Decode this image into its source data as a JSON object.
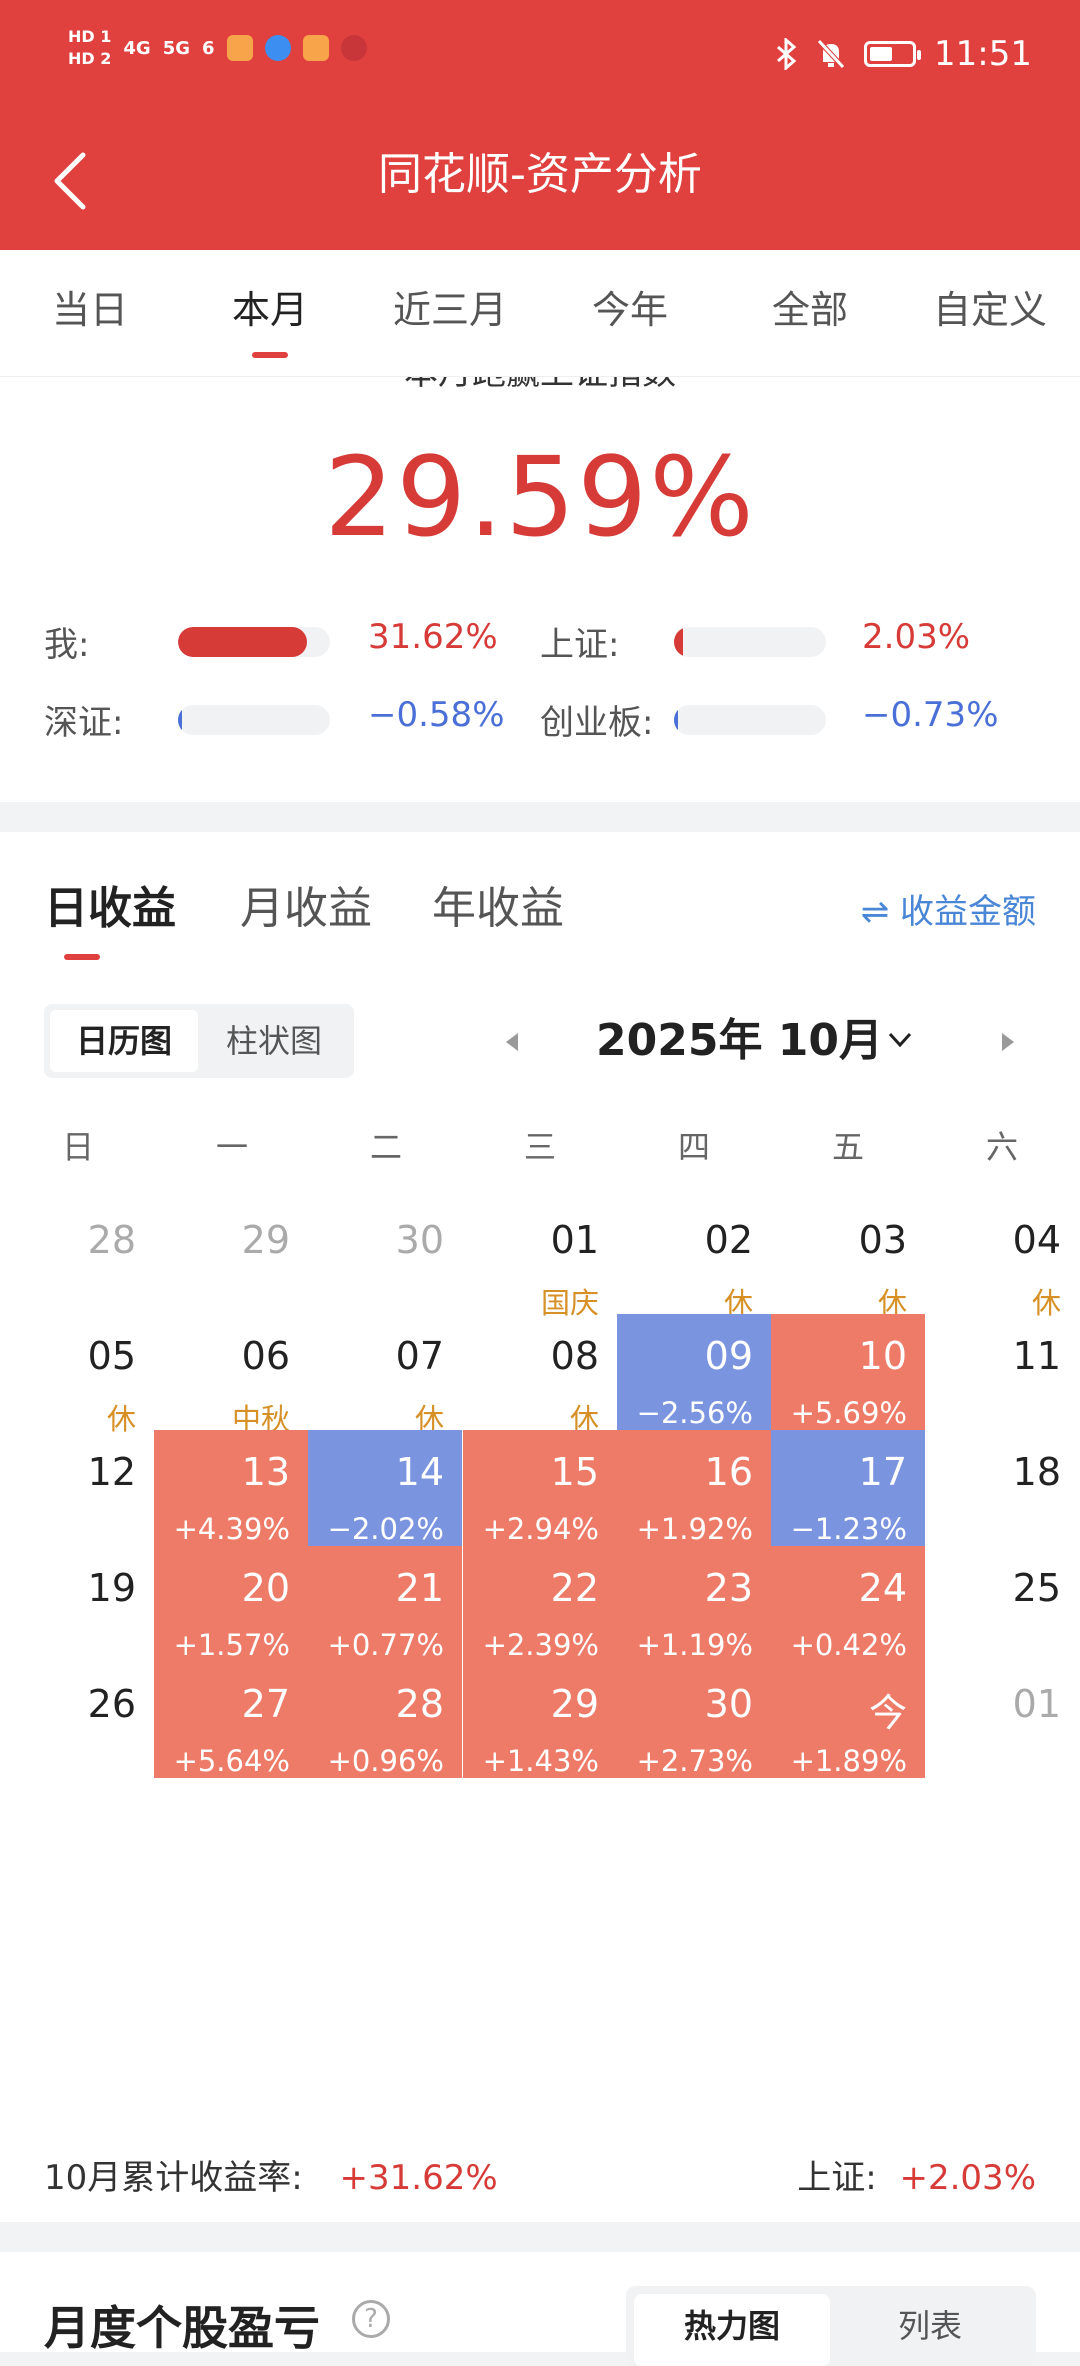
{
  "status_bar": {
    "time": "11:51",
    "hd1": "HD 1",
    "hd2": "HD 2",
    "net1": "4G",
    "net2": "5G",
    "wifi": "6",
    "battery_percent": 55
  },
  "header": {
    "back_icon": "chevron-left-icon",
    "title": "同花顺-资产分析"
  },
  "period_tabs": [
    {
      "label": "当日",
      "active": false
    },
    {
      "label": "本月",
      "active": true
    },
    {
      "label": "近三月",
      "active": false
    },
    {
      "label": "今年",
      "active": false
    },
    {
      "label": "全部",
      "active": false
    },
    {
      "label": "自定义",
      "active": false
    }
  ],
  "summary": {
    "title": "本月跑赢上证指数",
    "value": "29.59%",
    "comparisons": [
      {
        "label": "我:",
        "value": "31.62%",
        "fraction": 0.85,
        "dir": "up"
      },
      {
        "label": "上证:",
        "value": "2.03%",
        "fraction": 0.06,
        "dir": "up"
      },
      {
        "label": "深证:",
        "value": "−0.58%",
        "fraction": 0.02,
        "dir": "down"
      },
      {
        "label": "创业板:",
        "value": "−0.73%",
        "fraction": 0.02,
        "dir": "down"
      }
    ]
  },
  "profit_tabs": {
    "daily": "日收益",
    "monthly": "月收益",
    "yearly": "年收益",
    "amount_toggle": "收益金额",
    "amount_icon": "swap-arrows-icon"
  },
  "view_toggle": {
    "calendar": "日历图",
    "bar": "柱状图"
  },
  "month_nav": {
    "label": "2025年 10月",
    "prev_icon": "triangle-left-icon",
    "next_icon": "triangle-right-icon",
    "dropdown_icon": "chevron-down-icon"
  },
  "weekdays": [
    "日",
    "一",
    "二",
    "三",
    "四",
    "五",
    "六"
  ],
  "calendar": [
    [
      {
        "d": "28",
        "faded": true
      },
      {
        "d": "29",
        "faded": true
      },
      {
        "d": "30",
        "faded": true
      },
      {
        "d": "01",
        "hol": "国庆"
      },
      {
        "d": "02",
        "hol": "休"
      },
      {
        "d": "03",
        "hol": "休"
      },
      {
        "d": "04",
        "hol": "休"
      }
    ],
    [
      {
        "d": "05",
        "hol": "休"
      },
      {
        "d": "06",
        "hol": "中秋"
      },
      {
        "d": "07",
        "hol": "休"
      },
      {
        "d": "08",
        "hol": "休"
      },
      {
        "d": "09",
        "pct": "−2.56%",
        "dir": "neg"
      },
      {
        "d": "10",
        "pct": "+5.69%",
        "dir": "pos"
      },
      {
        "d": "11"
      }
    ],
    [
      {
        "d": "12"
      },
      {
        "d": "13",
        "pct": "+4.39%",
        "dir": "pos"
      },
      {
        "d": "14",
        "pct": "−2.02%",
        "dir": "neg"
      },
      {
        "d": "15",
        "pct": "+2.94%",
        "dir": "pos"
      },
      {
        "d": "16",
        "pct": "+1.92%",
        "dir": "pos"
      },
      {
        "d": "17",
        "pct": "−1.23%",
        "dir": "neg"
      },
      {
        "d": "18"
      }
    ],
    [
      {
        "d": "19"
      },
      {
        "d": "20",
        "pct": "+1.57%",
        "dir": "pos"
      },
      {
        "d": "21",
        "pct": "+0.77%",
        "dir": "pos"
      },
      {
        "d": "22",
        "pct": "+2.39%",
        "dir": "pos"
      },
      {
        "d": "23",
        "pct": "+1.19%",
        "dir": "pos"
      },
      {
        "d": "24",
        "pct": "+0.42%",
        "dir": "pos"
      },
      {
        "d": "25"
      }
    ],
    [
      {
        "d": "26"
      },
      {
        "d": "27",
        "pct": "+5.64%",
        "dir": "pos"
      },
      {
        "d": "28",
        "pct": "+0.96%",
        "dir": "pos"
      },
      {
        "d": "29",
        "pct": "+1.43%",
        "dir": "pos"
      },
      {
        "d": "30",
        "pct": "+2.73%",
        "dir": "pos"
      },
      {
        "d": "今",
        "pct": "+1.89%",
        "dir": "pos"
      },
      {
        "d": "01",
        "faded": true
      }
    ]
  ],
  "footer": {
    "cum_label": "10月累计收益率:",
    "cum_value": "+31.62%",
    "index_label": "上证:",
    "index_value": "+2.03%"
  },
  "bottom": {
    "title": "月度个股盈亏",
    "help_icon": "question-circle-icon",
    "heatmap": "热力图",
    "list": "列表"
  },
  "colors": {
    "brand_red": "#e0403e",
    "up": "#d63b38",
    "down": "#4a6fd6",
    "pos_cell": "#ee7b68",
    "neg_cell": "#7b94e0",
    "holiday": "#d69026"
  }
}
